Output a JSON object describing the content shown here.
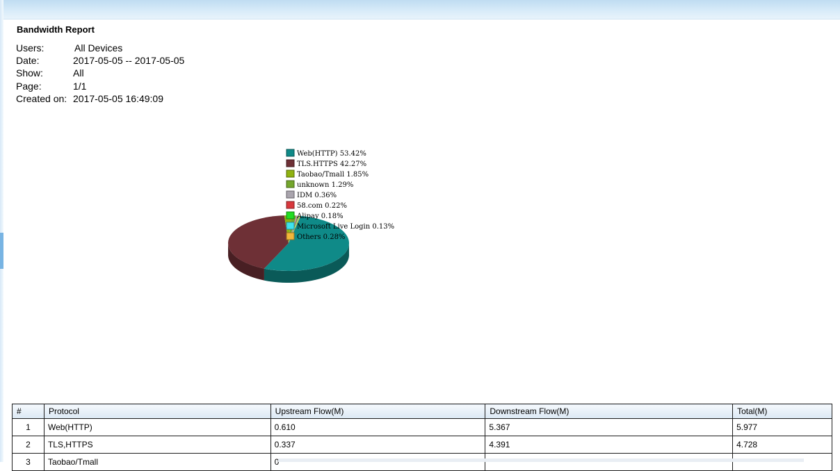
{
  "report": {
    "title": "Bandwidth Report",
    "meta": [
      {
        "label": "Users:",
        "value": "All Devices"
      },
      {
        "label": "Date:",
        "value": "2017-05-05 -- 2017-05-05"
      },
      {
        "label": "Show:",
        "value": "All"
      },
      {
        "label": "Page:",
        "value": "1/1"
      },
      {
        "label": "Created on:",
        "value": "2017-05-05 16:49:09"
      }
    ]
  },
  "chart_data": {
    "type": "pie",
    "title": "",
    "legend_position": "top",
    "slices": [
      {
        "label": "Web(HTTP)",
        "pct_text": "53.42%",
        "value": 53.42,
        "color": "#0f8a88"
      },
      {
        "label": "TLS.HTTPS",
        "pct_text": "42.27%",
        "value": 42.27,
        "color": "#6e3036"
      },
      {
        "label": "Taobao/Tmall",
        "pct_text": "1.85%",
        "value": 1.85,
        "color": "#8fb210"
      },
      {
        "label": "unknown",
        "pct_text": "1.29%",
        "value": 1.29,
        "color": "#74a62c"
      },
      {
        "label": "IDM",
        "pct_text": "0.36%",
        "value": 0.36,
        "color": "#a9a4ad"
      },
      {
        "label": "58.com",
        "pct_text": "0.22%",
        "value": 0.22,
        "color": "#d8383d"
      },
      {
        "label": "Alipay",
        "pct_text": "0.18%",
        "value": 0.18,
        "color": "#22dc22"
      },
      {
        "label": "Microsoft Live Login",
        "pct_text": "0.13%",
        "value": 0.13,
        "color": "#3fe3ef"
      },
      {
        "label": "Others",
        "pct_text": "0.28%",
        "value": 0.28,
        "color": "#f3b63a"
      }
    ]
  },
  "table": {
    "headers": [
      "#",
      "Protocol",
      "Upstream Flow(M)",
      "Downstream Flow(M)",
      "Total(M)"
    ],
    "rows": [
      {
        "num": "1",
        "protocol": "Web(HTTP)",
        "up": "0.610",
        "down": "5.367",
        "total": "5.977"
      },
      {
        "num": "2",
        "protocol": "TLS,HTTPS",
        "up": "0.337",
        "down": "4.391",
        "total": "4.728"
      },
      {
        "num": "3",
        "protocol": "Taobao/Tmall",
        "up": "0",
        "down": "",
        "total": ""
      }
    ]
  }
}
